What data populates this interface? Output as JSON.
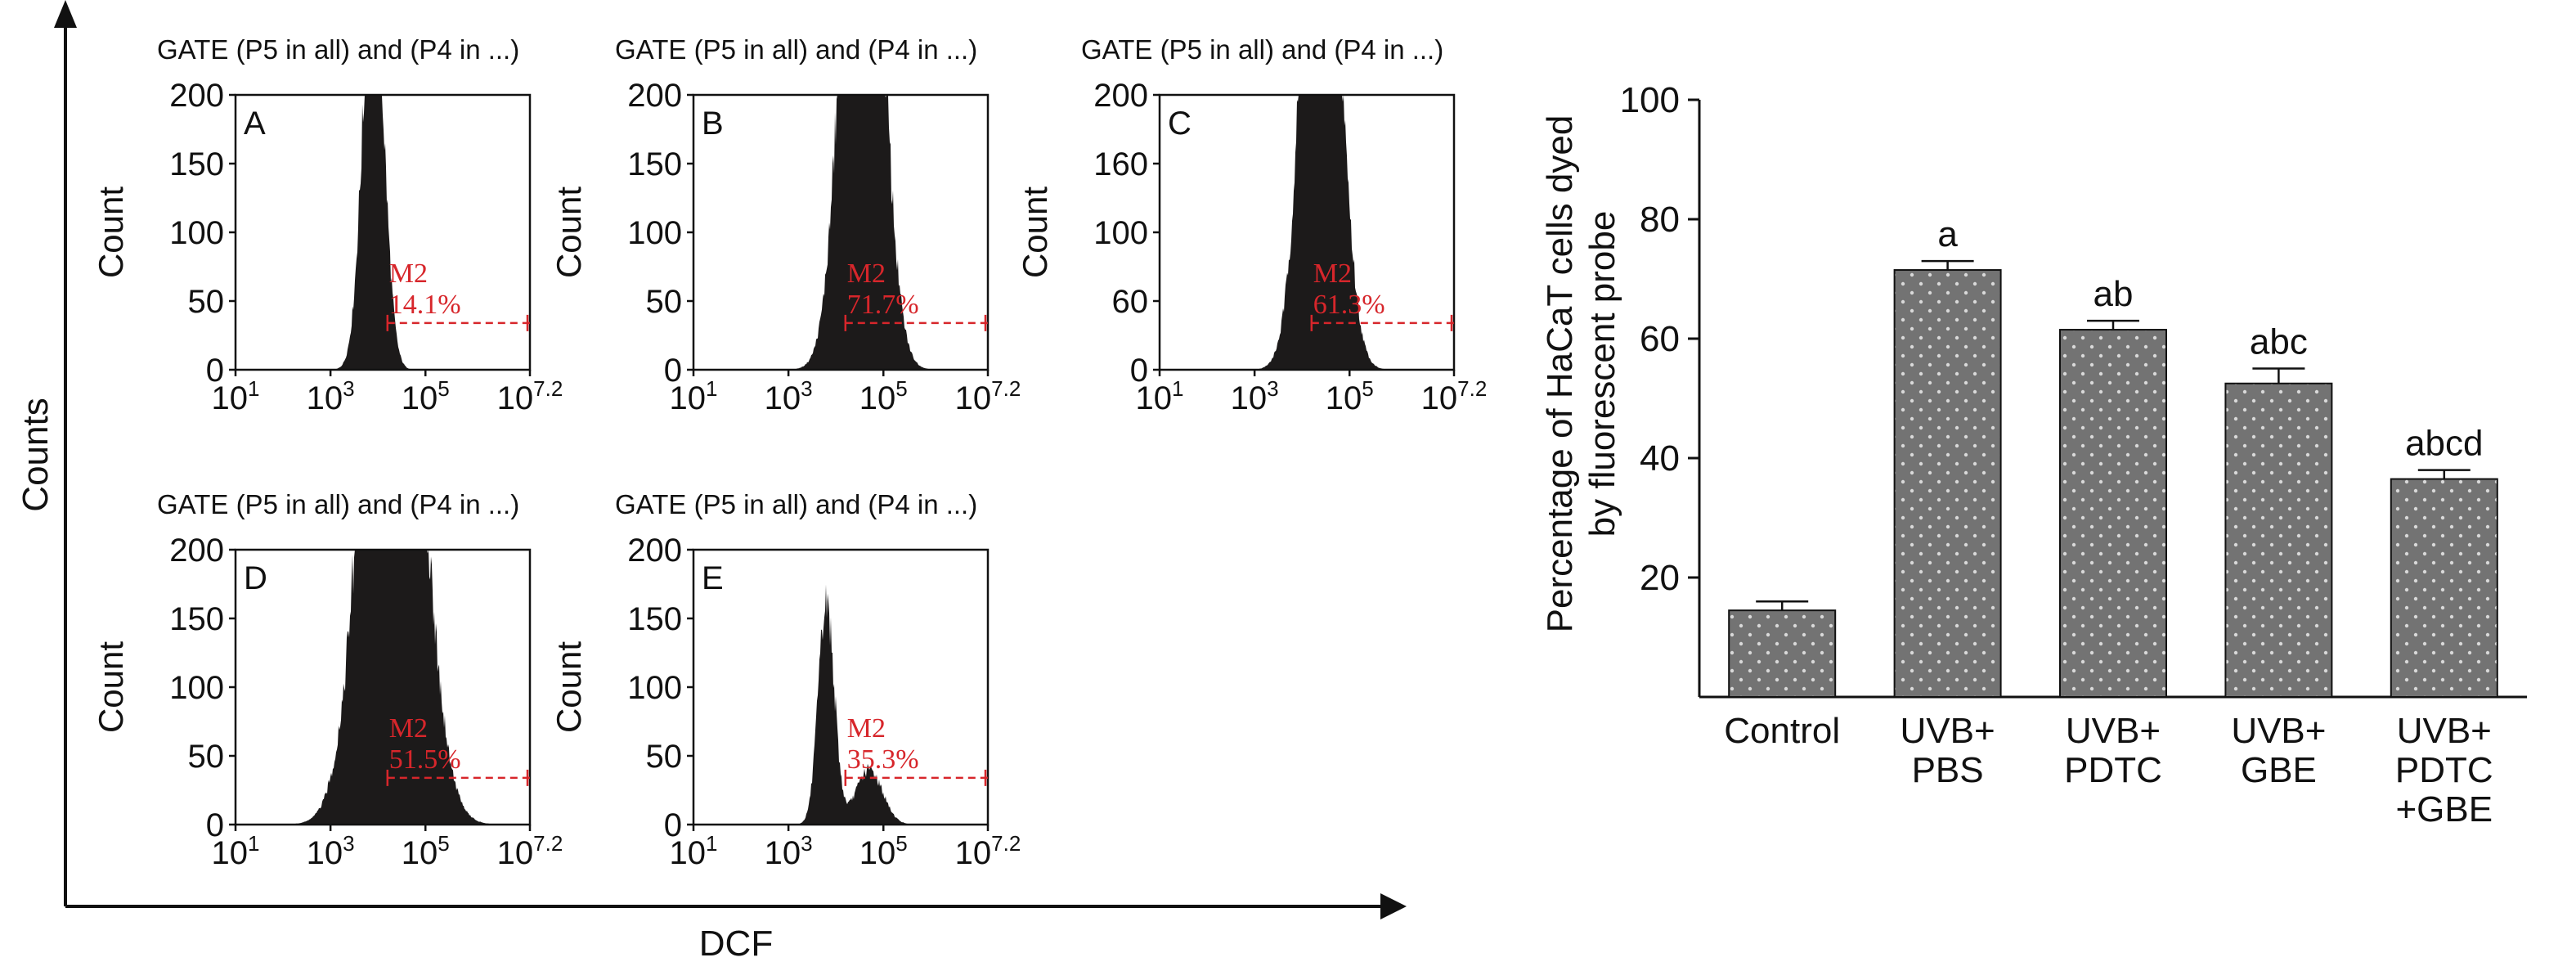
{
  "figure": {
    "outer_x_label": "DCF",
    "outer_y_label": "Counts"
  },
  "colors": {
    "histogram_fill": "#1c1a1a",
    "gate_red": "#d7262b",
    "bar_fill": "#737373",
    "bar_dots": "#d9d9d9",
    "axis": "#111111"
  },
  "chart_data": [
    {
      "type": "area",
      "panel": "A",
      "title": "GATE (P5 in all) and (P4 in ...)",
      "ylabel": "Count",
      "xlabel": "",
      "x_scale": "log",
      "xlim": [
        1,
        7.2
      ],
      "x_ticks": [
        {
          "label": "10",
          "exp": "1"
        },
        {
          "label": "10",
          "exp": "3"
        },
        {
          "label": "10",
          "exp": "5"
        },
        {
          "label": "10",
          "exp": "7.2"
        }
      ],
      "y_ticks": [
        "200",
        "150",
        "100",
        "50",
        "0"
      ],
      "ylim": [
        0,
        200
      ],
      "gate": {
        "name": "M2",
        "percent": "14.1%",
        "start_log": 4.2,
        "level": 34
      },
      "components": [
        {
          "mu": 3.9,
          "sigma": 0.22,
          "amp": 300
        }
      ]
    },
    {
      "type": "area",
      "panel": "B",
      "title": "GATE (P5 in all) and (P4 in ...)",
      "ylabel": "Count",
      "xlabel": "",
      "x_scale": "log",
      "xlim": [
        1,
        7.2
      ],
      "x_ticks": [
        {
          "label": "10",
          "exp": "1"
        },
        {
          "label": "10",
          "exp": "3"
        },
        {
          "label": "10",
          "exp": "5"
        },
        {
          "label": "10",
          "exp": "7.2"
        }
      ],
      "y_ticks": [
        "200",
        "150",
        "100",
        "50",
        "0"
      ],
      "ylim": [
        0,
        200
      ],
      "gate": {
        "name": "M2",
        "percent": "71.7%",
        "start_log": 4.2,
        "level": 34
      },
      "components": [
        {
          "mu": 4.55,
          "sigma": 0.38,
          "amp": 520
        }
      ]
    },
    {
      "type": "area",
      "panel": "C",
      "title": "GATE (P5 in all) and (P4 in ...)",
      "ylabel": "Count",
      "xlabel": "",
      "x_scale": "log",
      "xlim": [
        1,
        7.2
      ],
      "x_ticks": [
        {
          "label": "10",
          "exp": "1"
        },
        {
          "label": "10",
          "exp": "3"
        },
        {
          "label": "10",
          "exp": "5"
        },
        {
          "label": "10",
          "exp": "7.2"
        }
      ],
      "y_ticks": [
        "200",
        "160",
        "100",
        "60",
        "0"
      ],
      "ylim": [
        0,
        200
      ],
      "gate": {
        "name": "M2",
        "percent": "61.3%",
        "start_log": 4.2,
        "level": 34
      },
      "components": [
        {
          "mu": 4.4,
          "sigma": 0.36,
          "amp": 480
        }
      ]
    },
    {
      "type": "area",
      "panel": "D",
      "title": "GATE (P5 in all) and (P4 in ...)",
      "ylabel": "Count",
      "xlabel": "",
      "x_scale": "log",
      "xlim": [
        1,
        7.2
      ],
      "x_ticks": [
        {
          "label": "10",
          "exp": "1"
        },
        {
          "label": "10",
          "exp": "3"
        },
        {
          "label": "10",
          "exp": "5"
        },
        {
          "label": "10",
          "exp": "7.2"
        }
      ],
      "y_ticks": [
        "200",
        "150",
        "100",
        "50",
        "0"
      ],
      "ylim": [
        0,
        200
      ],
      "gate": {
        "name": "M2",
        "percent": "51.5%",
        "start_log": 4.2,
        "level": 34
      },
      "components": [
        {
          "mu": 4.3,
          "sigma": 0.55,
          "amp": 560
        }
      ]
    },
    {
      "type": "area",
      "panel": "E",
      "title": "GATE (P5 in all) and (P4 in ...)",
      "ylabel": "Count",
      "xlabel": "",
      "x_scale": "log",
      "xlim": [
        1,
        7.2
      ],
      "x_ticks": [
        {
          "label": "10",
          "exp": "1"
        },
        {
          "label": "10",
          "exp": "3"
        },
        {
          "label": "10",
          "exp": "5"
        },
        {
          "label": "10",
          "exp": "7.2"
        }
      ],
      "y_ticks": [
        "200",
        "150",
        "100",
        "50",
        "0"
      ],
      "ylim": [
        0,
        200
      ],
      "gate": {
        "name": "M2",
        "percent": "35.3%",
        "start_log": 4.2,
        "level": 34
      },
      "components": [
        {
          "mu": 3.8,
          "sigma": 0.17,
          "amp": 160
        },
        {
          "mu": 4.7,
          "sigma": 0.28,
          "amp": 40
        }
      ]
    },
    {
      "type": "bar",
      "title": "",
      "xlabel": "",
      "ylabel": "Percentage of HaCaT cells dyed by fluorescent probe",
      "ylabel_lines": [
        "Percentage of HaCaT cells dyed",
        "by fluorescent probe"
      ],
      "ylim": [
        0,
        100
      ],
      "y_ticks": [
        100,
        80,
        60,
        40,
        20
      ],
      "categories": [
        [
          "Control"
        ],
        [
          "UVB+",
          "PBS"
        ],
        [
          "UVB+",
          "PDTC"
        ],
        [
          "UVB+",
          "GBE"
        ],
        [
          "UVB+",
          "PDTC",
          "+GBE"
        ]
      ],
      "values": [
        14.5,
        71.5,
        61.5,
        52.5,
        36.5
      ],
      "errors": [
        1.5,
        1.5,
        1.5,
        2.5,
        1.5
      ],
      "annotations": [
        "",
        "a",
        "ab",
        "abc",
        "abcd"
      ],
      "pattern": "dotted",
      "grid": false
    }
  ]
}
